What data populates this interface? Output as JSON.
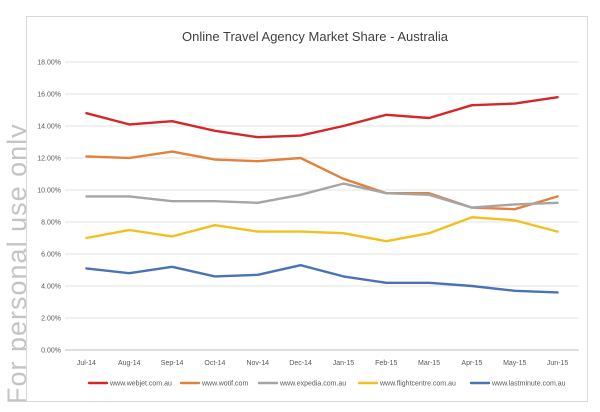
{
  "watermark": "For personal use only",
  "chart_data": {
    "type": "line",
    "title": "Online Travel Agency Market Share - Australia",
    "xlabel": "",
    "ylabel": "",
    "categories": [
      "Jul-14",
      "Aug-14",
      "Sep-14",
      "Oct-14",
      "Nov-14",
      "Dec-14",
      "Jan-15",
      "Feb-15",
      "Mar-15",
      "Apr-15",
      "May-15",
      "Jun-15"
    ],
    "ylim": [
      0,
      18
    ],
    "yticks": [
      0,
      2,
      4,
      6,
      8,
      10,
      12,
      14,
      16,
      18
    ],
    "ytick_labels": [
      "0.00%",
      "2.00%",
      "4.00%",
      "6.00%",
      "8.00%",
      "10.00%",
      "12.00%",
      "14.00%",
      "16.00%",
      "18.00%"
    ],
    "grid": true,
    "legend_position": "bottom",
    "series": [
      {
        "name": "www.webjet.com.au",
        "color": "#d62728",
        "values": [
          14.8,
          14.1,
          14.3,
          13.7,
          13.3,
          13.4,
          14.0,
          14.7,
          14.5,
          15.3,
          15.4,
          15.8
        ]
      },
      {
        "name": "www.wotif.com",
        "color": "#e0823c",
        "values": [
          12.1,
          12.0,
          12.4,
          11.9,
          11.8,
          12.0,
          10.7,
          9.8,
          9.8,
          8.9,
          8.8,
          9.6
        ]
      },
      {
        "name": "www.expedia.com.au",
        "color": "#a5a5a5",
        "values": [
          9.6,
          9.6,
          9.3,
          9.3,
          9.2,
          9.7,
          10.4,
          9.8,
          9.7,
          8.9,
          9.1,
          9.2
        ]
      },
      {
        "name": "www.flightcentre.com.au",
        "color": "#f2c01e",
        "values": [
          7.0,
          7.5,
          7.1,
          7.8,
          7.4,
          7.4,
          7.3,
          6.8,
          7.3,
          8.3,
          8.1,
          7.4
        ]
      },
      {
        "name": "www.lastminute.com.au",
        "color": "#4a72b8",
        "values": [
          5.1,
          4.8,
          5.2,
          4.6,
          4.7,
          5.3,
          4.6,
          4.2,
          4.2,
          4.0,
          3.7,
          3.6
        ]
      }
    ]
  }
}
